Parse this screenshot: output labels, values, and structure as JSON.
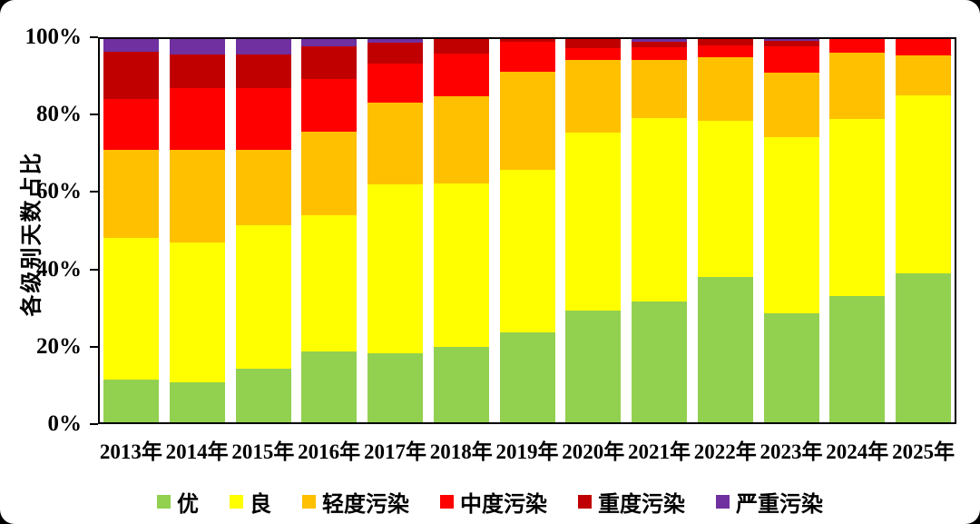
{
  "chart_data": {
    "type": "bar",
    "stacked": true,
    "orientation": "vertical",
    "title": "",
    "xlabel": "",
    "ylabel": "各级别天数占比",
    "ylim": [
      0,
      100
    ],
    "y_unit": "%",
    "y_ticks": [
      0,
      20,
      40,
      60,
      80,
      100
    ],
    "y_tick_labels": [
      "0%",
      "20%",
      "40%",
      "60%",
      "80%",
      "100%"
    ],
    "grid": false,
    "legend_position": "bottom",
    "categories": [
      "2013年",
      "2014年",
      "2015年",
      "2016年",
      "2017年",
      "2018年",
      "2019年",
      "2020年",
      "2021年",
      "2022年",
      "2023年",
      "2024年",
      "2025年"
    ],
    "series": [
      {
        "name": "优",
        "color": "#92D050",
        "values": [
          11.2,
          10.5,
          14.0,
          18.5,
          17.9,
          19.7,
          23.4,
          29.1,
          31.5,
          37.9,
          28.4,
          33.0,
          38.8
        ]
      },
      {
        "name": "良",
        "color": "#FFFF00",
        "values": [
          37.0,
          36.5,
          37.4,
          35.6,
          44.2,
          42.6,
          42.5,
          46.4,
          48.0,
          40.7,
          46.1,
          46.2,
          46.6
        ]
      },
      {
        "name": "轻度污染",
        "color": "#FFC000",
        "values": [
          23.0,
          24.1,
          19.7,
          21.7,
          21.4,
          22.7,
          25.5,
          19.1,
          15.0,
          16.6,
          16.8,
          17.3,
          10.3
        ]
      },
      {
        "name": "中度污染",
        "color": "#FF0000",
        "values": [
          13.2,
          16.2,
          16.2,
          13.9,
          10.0,
          11.3,
          7.8,
          3.0,
          3.3,
          3.1,
          6.7,
          3.5,
          4.3
        ]
      },
      {
        "name": "重度污染",
        "color": "#C00000",
        "values": [
          12.2,
          8.8,
          8.8,
          8.3,
          5.5,
          3.7,
          0.8,
          2.4,
          1.6,
          1.7,
          1.6,
          0.0,
          0.0
        ]
      },
      {
        "name": "严重污染",
        "color": "#7030A0",
        "values": [
          3.4,
          3.9,
          3.9,
          2.0,
          1.0,
          0.0,
          0.0,
          0.0,
          0.6,
          0.0,
          0.4,
          0.0,
          0.0
        ]
      }
    ]
  },
  "colors": {
    "axis": "#000000",
    "text": "#000000",
    "card_background": "#FFFFFF",
    "page_background": "#000000"
  }
}
